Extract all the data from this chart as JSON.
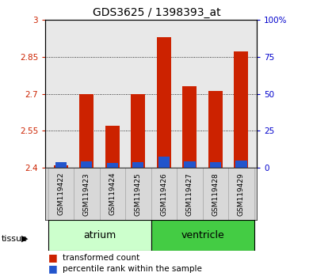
{
  "title": "GDS3625 / 1398393_at",
  "samples": [
    "GSM119422",
    "GSM119423",
    "GSM119424",
    "GSM119425",
    "GSM119426",
    "GSM119427",
    "GSM119428",
    "GSM119429"
  ],
  "red_tops": [
    2.41,
    2.7,
    2.57,
    2.7,
    2.93,
    2.73,
    2.71,
    2.87
  ],
  "blue_tops": [
    2.425,
    2.428,
    2.422,
    2.423,
    2.445,
    2.428,
    2.423,
    2.43
  ],
  "baseline": 2.4,
  "ylim_left": [
    2.4,
    3.0
  ],
  "ylim_right": [
    0,
    100
  ],
  "yticks_left": [
    2.4,
    2.55,
    2.7,
    2.85,
    3.0
  ],
  "yticks_right": [
    0,
    25,
    50,
    75,
    100
  ],
  "ytick_labels_left": [
    "2.4",
    "2.55",
    "2.7",
    "2.85",
    "3"
  ],
  "ytick_labels_right": [
    "0",
    "25",
    "50",
    "75",
    "100%"
  ],
  "bar_color_red": "#cc2200",
  "bar_color_blue": "#2255cc",
  "bar_width": 0.55,
  "atrium_color": "#ccffcc",
  "ventricle_color": "#44cc44",
  "axis_left_color": "#cc2200",
  "axis_right_color": "#0000cc",
  "legend_items": [
    {
      "color": "#cc2200",
      "label": "transformed count"
    },
    {
      "color": "#2255cc",
      "label": "percentile rank within the sample"
    }
  ]
}
